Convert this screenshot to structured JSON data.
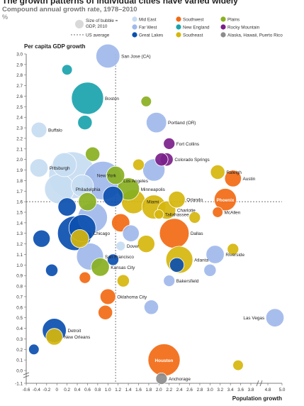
{
  "chart_data": {
    "type": "scatter",
    "title": "The growth patterns of individual cities have varied widely",
    "subtitle": "Compound annual growth rate, 1978–2010",
    "unit": "%",
    "xlabel": "Population growth",
    "ylabel": "Per capita GDP growth",
    "xlim": [
      -0.6,
      5.0
    ],
    "ylim": [
      -1.1,
      3.0
    ],
    "x_axis_break": [
      3.8,
      4.8
    ],
    "x_ticks": [
      -0.6,
      -0.4,
      -0.2,
      0,
      0.2,
      0.4,
      0.6,
      0.8,
      1.0,
      1.2,
      1.4,
      1.6,
      1.8,
      2.0,
      2.2,
      2.4,
      2.6,
      2.8,
      3.0,
      3.2,
      3.4,
      3.6,
      3.8,
      4.8,
      5.0
    ],
    "y_ticks": [
      -1.1,
      0,
      0.1,
      0.2,
      0.3,
      0.4,
      0.5,
      0.6,
      0.7,
      0.8,
      0.9,
      1.0,
      1.1,
      1.2,
      1.3,
      1.4,
      1.5,
      1.6,
      1.7,
      1.8,
      1.9,
      2.0,
      2.1,
      2.2,
      2.3,
      2.4,
      2.5,
      2.6,
      2.7,
      2.8,
      2.9,
      3.0
    ],
    "us_average": {
      "x": 1.15,
      "y": 1.6
    },
    "legend": {
      "bubble_note": "Size of bubble = GDP, 2010",
      "average_note": "US average",
      "regions": [
        {
          "name": "Mid East",
          "color": "#c7dcf2"
        },
        {
          "name": "Far West",
          "color": "#9fb9ec"
        },
        {
          "name": "Great Lakes",
          "color": "#0b4fb0"
        },
        {
          "name": "Southwest",
          "color": "#f26a13"
        },
        {
          "name": "New England",
          "color": "#1aa3ad"
        },
        {
          "name": "Southeast",
          "color": "#d6b60c"
        },
        {
          "name": "Plains",
          "color": "#89b020"
        },
        {
          "name": "Rocky Mountain",
          "color": "#7b1f8a"
        },
        {
          "name": "Alaska, Hawaii, Puerto Rico",
          "color": "#8c8c8c"
        }
      ]
    },
    "cities": [
      {
        "name": "San Jose (CA)",
        "region": "Far West",
        "x": 1.0,
        "y": 2.98,
        "gdp": 3
      },
      {
        "name": "Boston",
        "region": "New England",
        "x": 0.6,
        "y": 2.58,
        "gdp": 6
      },
      {
        "name": "Buffalo",
        "region": "Mid East",
        "x": -0.35,
        "y": 2.28,
        "gdp": 1
      },
      {
        "name": "Portland (OR)",
        "region": "Far West",
        "x": 1.95,
        "y": 2.35,
        "gdp": 2
      },
      {
        "name": "Fort Collins",
        "region": "Rocky Mountain",
        "x": 2.2,
        "y": 2.15,
        "gdp": 0.4
      },
      {
        "name": "Colorado Springs",
        "region": "Rocky Mountain",
        "x": 2.15,
        "y": 2.0,
        "gdp": 0.6
      },
      {
        "name": "New York",
        "region": "Mid East",
        "x": 0.3,
        "y": 1.85,
        "gdp": 14
      },
      {
        "name": "Pittsburgh",
        "region": "Mid East",
        "x": -0.35,
        "y": 1.92,
        "gdp": 1.5
      },
      {
        "name": "Los Angeles",
        "region": "Far West",
        "x": 0.9,
        "y": 1.8,
        "gdp": 9
      },
      {
        "name": "Raleigh",
        "region": "Southeast",
        "x": 3.15,
        "y": 1.88,
        "gdp": 0.8
      },
      {
        "name": "Austin",
        "region": "Southwest",
        "x": 3.45,
        "y": 1.82,
        "gdp": 1.2
      },
      {
        "name": "Philadelphia",
        "region": "Mid East",
        "x": 0.05,
        "y": 1.72,
        "gdp": 5
      },
      {
        "name": "Minneapolis",
        "region": "Plains",
        "x": 1.4,
        "y": 1.72,
        "gdp": 2.5
      },
      {
        "name": "Miami",
        "region": "Southeast",
        "x": 1.5,
        "y": 1.6,
        "gdp": 3
      },
      {
        "name": "Orlando",
        "region": "Southeast",
        "x": 2.35,
        "y": 1.62,
        "gdp": 1.2
      },
      {
        "name": "Charlotte",
        "region": "Southeast",
        "x": 2.15,
        "y": 1.52,
        "gdp": 1.5
      },
      {
        "name": "Phoenix",
        "region": "Southwest",
        "x": 3.3,
        "y": 1.62,
        "gdp": 2.5
      },
      {
        "name": "Tallahassee",
        "region": "Southeast",
        "x": 2.0,
        "y": 1.48,
        "gdp": 0.2
      },
      {
        "name": "McAllen",
        "region": "Southwest",
        "x": 3.15,
        "y": 1.5,
        "gdp": 0.3
      },
      {
        "name": "Dallas",
        "region": "Southwest",
        "x": 2.3,
        "y": 1.3,
        "gdp": 5
      },
      {
        "name": "Dover",
        "region": "Mid East",
        "x": 1.25,
        "y": 1.18,
        "gdp": 0.2
      },
      {
        "name": "Chicago",
        "region": "Great Lakes",
        "x": 0.35,
        "y": 1.3,
        "gdp": 7
      },
      {
        "name": "Riverside",
        "region": "Far West",
        "x": 3.1,
        "y": 1.1,
        "gdp": 1.5
      },
      {
        "name": "San Francisco",
        "region": "Far West",
        "x": 0.65,
        "y": 1.08,
        "gdp": 4
      },
      {
        "name": "Atlanta",
        "region": "Southeast",
        "x": 2.4,
        "y": 1.05,
        "gdp": 4
      },
      {
        "name": "Kansas City",
        "region": "Plains",
        "x": 0.85,
        "y": 0.98,
        "gdp": 1.5
      },
      {
        "name": "Bakersfield",
        "region": "Far West",
        "x": 2.2,
        "y": 0.85,
        "gdp": 0.4
      },
      {
        "name": "Oklahoma City",
        "region": "Southwest",
        "x": 1.0,
        "y": 0.7,
        "gdp": 1
      },
      {
        "name": "Las Vegas",
        "region": "Far West",
        "x": 4.9,
        "y": 0.5,
        "gdp": 1.5
      },
      {
        "name": "Detroit",
        "region": "Great Lakes",
        "x": -0.05,
        "y": 0.38,
        "gdp": 3
      },
      {
        "name": "New Orleans",
        "region": "Southeast",
        "x": -0.05,
        "y": 0.32,
        "gdp": 1.2
      },
      {
        "name": "Houston",
        "region": "Southwest",
        "x": 2.1,
        "y": 0.1,
        "gdp": 6
      },
      {
        "name": "Anchorage",
        "region": "Alaska, Hawaii, Puerto Rico",
        "x": 2.05,
        "y": -0.7,
        "gdp": 0.4
      },
      {
        "name": "",
        "region": "Great Lakes",
        "x": 0.5,
        "y": 1.35,
        "gdp": 4
      },
      {
        "name": "",
        "region": "Far West",
        "x": 0.7,
        "y": 1.45,
        "gdp": 5
      },
      {
        "name": "",
        "region": "Mid East",
        "x": 0.15,
        "y": 1.95,
        "gdp": 3
      },
      {
        "name": "",
        "region": "Far West",
        "x": 1.9,
        "y": 1.9,
        "gdp": 2.5
      },
      {
        "name": "",
        "region": "Southeast",
        "x": 1.9,
        "y": 1.55,
        "gdp": 3
      },
      {
        "name": "",
        "region": "Great Lakes",
        "x": 1.1,
        "y": 1.65,
        "gdp": 2
      },
      {
        "name": "",
        "region": "Plains",
        "x": 1.15,
        "y": 1.85,
        "gdp": 1.5
      },
      {
        "name": "",
        "region": "Southwest",
        "x": 1.25,
        "y": 1.4,
        "gdp": 1.5
      },
      {
        "name": "",
        "region": "Far West",
        "x": 1.45,
        "y": 1.3,
        "gdp": 1.2
      },
      {
        "name": "",
        "region": "Southeast",
        "x": 0.45,
        "y": 1.25,
        "gdp": 1.5
      },
      {
        "name": "",
        "region": "Great Lakes",
        "x": -0.3,
        "y": 1.25,
        "gdp": 1.3
      },
      {
        "name": "",
        "region": "New England",
        "x": 0.55,
        "y": 2.35,
        "gdp": 0.8
      },
      {
        "name": "",
        "region": "Plains",
        "x": 0.6,
        "y": 1.6,
        "gdp": 1.5
      },
      {
        "name": "",
        "region": "Great Lakes",
        "x": 0.2,
        "y": 1.55,
        "gdp": 1.5
      },
      {
        "name": "",
        "region": "Mid East",
        "x": 0.5,
        "y": 1.75,
        "gdp": 2.5
      },
      {
        "name": "",
        "region": "Southeast",
        "x": 1.75,
        "y": 1.2,
        "gdp": 1.3
      },
      {
        "name": "",
        "region": "Great Lakes",
        "x": 2.35,
        "y": 1.0,
        "gdp": 0.8
      },
      {
        "name": "",
        "region": "Southwest",
        "x": 0.95,
        "y": 0.55,
        "gdp": 0.8
      },
      {
        "name": "",
        "region": "Far West",
        "x": 1.85,
        "y": 0.6,
        "gdp": 0.8
      },
      {
        "name": "",
        "region": "Great Lakes",
        "x": -0.1,
        "y": 0.95,
        "gdp": 0.5
      },
      {
        "name": "",
        "region": "Southeast",
        "x": 1.3,
        "y": 0.85,
        "gdp": 0.5
      },
      {
        "name": "",
        "region": "Plains",
        "x": 0.7,
        "y": 2.05,
        "gdp": 0.8
      },
      {
        "name": "",
        "region": "Far West",
        "x": 3.0,
        "y": 0.95,
        "gdp": 0.5
      },
      {
        "name": "",
        "region": "Southeast",
        "x": 3.45,
        "y": 1.15,
        "gdp": 0.4
      },
      {
        "name": "",
        "region": "Rocky Mountain",
        "x": 2.05,
        "y": 2.0,
        "gdp": 0.6
      },
      {
        "name": "",
        "region": "New England",
        "x": 0.2,
        "y": 2.85,
        "gdp": 0.3
      },
      {
        "name": "",
        "region": "Southeast",
        "x": 3.55,
        "y": 0.05,
        "gdp": 0.3
      },
      {
        "name": "",
        "region": "Great Lakes",
        "x": -0.45,
        "y": 0.2,
        "gdp": 0.3
      },
      {
        "name": "",
        "region": "Southwest",
        "x": 0.55,
        "y": 0.88,
        "gdp": 0.4
      },
      {
        "name": "",
        "region": "Southeast",
        "x": 1.6,
        "y": 1.95,
        "gdp": 0.4
      },
      {
        "name": "",
        "region": "Plains",
        "x": 1.75,
        "y": 2.55,
        "gdp": 0.3
      },
      {
        "name": "",
        "region": "Great Lakes",
        "x": 1.1,
        "y": 1.05,
        "gdp": 0.4
      },
      {
        "name": "",
        "region": "Southeast",
        "x": 2.7,
        "y": 1.45,
        "gdp": 0.4
      }
    ]
  }
}
